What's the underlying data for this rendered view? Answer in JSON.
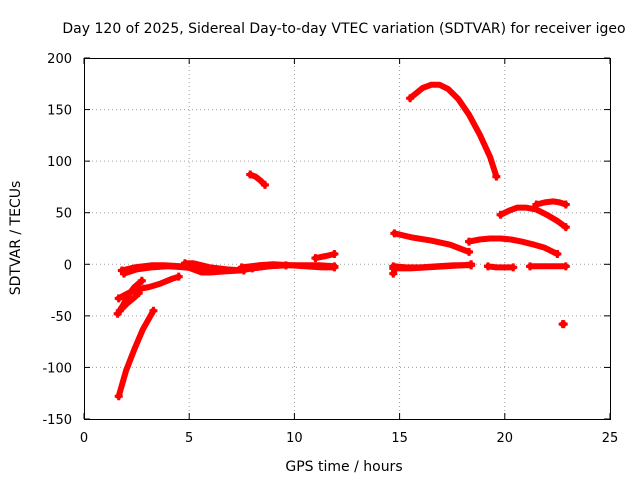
{
  "chart_data": {
    "type": "scatter",
    "title": "Day 120 of 2025, Sidereal Day-to-day VTEC variation (SDTVAR) for receiver igeo",
    "xlabel": "GPS time / hours",
    "ylabel": "SDTVAR / TECUs",
    "xlim": [
      0,
      25
    ],
    "ylim": [
      -150,
      200
    ],
    "xticks": [
      0,
      5,
      10,
      15,
      20,
      25
    ],
    "yticks": [
      -150,
      -100,
      -50,
      0,
      50,
      100,
      150,
      200
    ],
    "xtick_labels": [
      "0",
      "5",
      "10",
      "15",
      "20",
      "25"
    ],
    "ytick_labels": [
      "-150",
      "-100",
      "-50",
      "0",
      "50",
      "100",
      "150",
      "200"
    ],
    "grid": true,
    "legend": "none",
    "color": "#ff0000",
    "segments": [
      {
        "points": [
          [
            1.65,
            -128
          ],
          [
            2.0,
            -103
          ],
          [
            2.4,
            -82
          ],
          [
            2.8,
            -63
          ],
          [
            3.3,
            -45
          ]
        ]
      },
      {
        "points": [
          [
            1.6,
            -48
          ],
          [
            1.85,
            -40
          ],
          [
            2.1,
            -30
          ],
          [
            2.4,
            -22
          ],
          [
            2.75,
            -16
          ]
        ]
      },
      {
        "points": [
          [
            1.65,
            -33
          ],
          [
            2.1,
            -28
          ],
          [
            2.6,
            -24
          ],
          [
            3.1,
            -22
          ],
          [
            3.6,
            -19
          ],
          [
            4.2,
            -14
          ],
          [
            4.5,
            -12
          ]
        ]
      },
      {
        "points": [
          [
            1.7,
            -45
          ],
          [
            2.05,
            -38
          ],
          [
            2.4,
            -32
          ],
          [
            2.6,
            -28
          ]
        ]
      },
      {
        "points": [
          [
            1.8,
            -6
          ],
          [
            2.4,
            -3
          ],
          [
            3.2,
            -1
          ],
          [
            3.8,
            -1
          ],
          [
            4.6,
            -2
          ],
          [
            5.3,
            -4
          ]
        ]
      },
      {
        "points": [
          [
            1.9,
            -9
          ],
          [
            2.5,
            -5
          ],
          [
            3.2,
            -3
          ],
          [
            4.0,
            -2
          ],
          [
            4.8,
            -3
          ],
          [
            5.6,
            -5
          ]
        ]
      },
      {
        "points": [
          [
            4.8,
            -2
          ],
          [
            5.2,
            -5
          ],
          [
            5.6,
            -8
          ],
          [
            6.0,
            -8
          ],
          [
            6.6,
            -7
          ],
          [
            7.4,
            -6
          ],
          [
            8.0,
            -4
          ],
          [
            8.8,
            -2
          ],
          [
            9.6,
            -1
          ],
          [
            10.4,
            -1
          ],
          [
            11.2,
            -1
          ],
          [
            11.9,
            -2
          ]
        ]
      },
      {
        "points": [
          [
            4.8,
            1
          ],
          [
            5.2,
            1
          ],
          [
            5.6,
            -1
          ],
          [
            6.0,
            -3
          ],
          [
            6.8,
            -5
          ],
          [
            7.6,
            -6
          ]
        ]
      },
      {
        "points": [
          [
            7.5,
            -3
          ],
          [
            8.3,
            -1
          ],
          [
            9.0,
            0
          ],
          [
            9.8,
            -1
          ],
          [
            10.5,
            -2
          ],
          [
            11.3,
            -3
          ],
          [
            11.9,
            -3
          ]
        ]
      },
      {
        "points": [
          [
            8.0,
            -4
          ],
          [
            8.8,
            -2
          ],
          [
            9.6,
            -1
          ]
        ]
      },
      {
        "points": [
          [
            11.0,
            6
          ],
          [
            11.5,
            8
          ],
          [
            11.9,
            10
          ]
        ]
      },
      {
        "points": [
          [
            7.9,
            87
          ],
          [
            8.15,
            85
          ],
          [
            8.4,
            81
          ],
          [
            8.6,
            77
          ]
        ]
      },
      {
        "points": [
          [
            14.7,
            -9
          ],
          [
            14.75,
            -6
          ],
          [
            14.8,
            -3
          ]
        ]
      },
      {
        "points": [
          [
            14.7,
            -2
          ],
          [
            15.3,
            -3
          ],
          [
            16.0,
            -3
          ],
          [
            16.8,
            -2
          ],
          [
            17.6,
            -1
          ],
          [
            18.4,
            -1
          ]
        ]
      },
      {
        "points": [
          [
            14.7,
            -4
          ],
          [
            15.5,
            -4
          ],
          [
            16.3,
            -3
          ],
          [
            17.2,
            -2
          ],
          [
            18.0,
            -1
          ],
          [
            18.4,
            0
          ]
        ]
      },
      {
        "points": [
          [
            14.75,
            30
          ],
          [
            15.6,
            26
          ],
          [
            16.5,
            23
          ],
          [
            17.4,
            19
          ],
          [
            18.3,
            12
          ]
        ]
      },
      {
        "points": [
          [
            15.5,
            161
          ],
          [
            15.8,
            166
          ],
          [
            16.1,
            171
          ],
          [
            16.5,
            174
          ],
          [
            16.9,
            174
          ],
          [
            17.3,
            170
          ],
          [
            17.8,
            160
          ],
          [
            18.3,
            145
          ],
          [
            18.8,
            126
          ],
          [
            19.3,
            104
          ],
          [
            19.6,
            85
          ]
        ]
      },
      {
        "points": [
          [
            18.3,
            22
          ],
          [
            18.8,
            24
          ],
          [
            19.3,
            25
          ],
          [
            19.8,
            25
          ],
          [
            20.3,
            24
          ],
          [
            20.8,
            22
          ],
          [
            21.4,
            19
          ],
          [
            21.9,
            16
          ],
          [
            22.2,
            13
          ],
          [
            22.5,
            10
          ]
        ]
      },
      {
        "points": [
          [
            19.2,
            -2
          ],
          [
            19.6,
            -3
          ],
          [
            20.0,
            -3
          ],
          [
            20.4,
            -3
          ]
        ]
      },
      {
        "points": [
          [
            19.8,
            48
          ],
          [
            20.2,
            52
          ],
          [
            20.6,
            55
          ],
          [
            21.0,
            55
          ],
          [
            21.5,
            53
          ],
          [
            22.0,
            48
          ],
          [
            22.5,
            42
          ],
          [
            22.9,
            36
          ]
        ]
      },
      {
        "points": [
          [
            21.5,
            58
          ],
          [
            21.9,
            60
          ],
          [
            22.3,
            61
          ],
          [
            22.6,
            60
          ],
          [
            22.9,
            58
          ]
        ]
      },
      {
        "points": [
          [
            21.2,
            -2
          ],
          [
            21.7,
            -2
          ],
          [
            22.2,
            -2
          ],
          [
            22.9,
            -2
          ]
        ]
      },
      {
        "points": [
          [
            22.75,
            -58
          ],
          [
            22.8,
            -58
          ]
        ]
      }
    ]
  }
}
